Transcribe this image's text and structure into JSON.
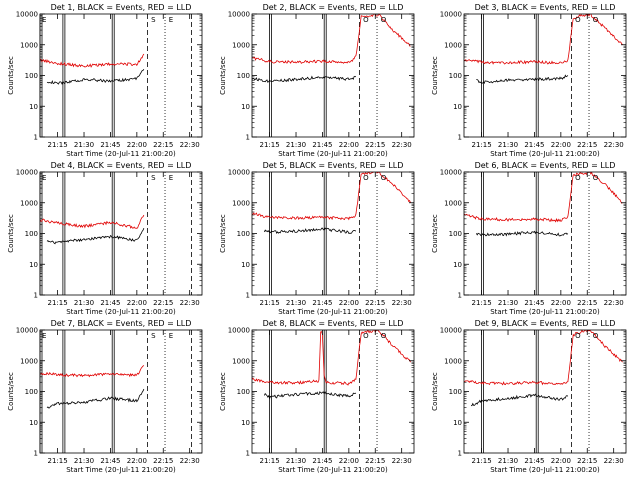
{
  "colors": {
    "events": "#000000",
    "lld": "#e00000",
    "axes": "#000000"
  },
  "chart_data": [
    {
      "type": "line",
      "title": "Det 1, BLACK = Events, RED = LLD",
      "xlabel": "Start Time (20-Jul-11 21:00:20)",
      "ylabel": "Counts/sec",
      "xlim": [
        "21:05",
        "22:37"
      ],
      "ylim": [
        1,
        10000
      ],
      "yscale": "log",
      "grid": false,
      "x_ticks": [
        "21:15",
        "21:30",
        "21:45",
        "22:00",
        "22:15",
        "22:30"
      ],
      "y_ticks": [
        "1",
        "10",
        "100",
        "1000",
        "10000"
      ],
      "annotations": [
        {
          "text": "E",
          "x": "21:05"
        },
        {
          "text": "S",
          "x": "22:07"
        },
        {
          "text": "E",
          "x": "22:17"
        }
      ],
      "solid_vlines": [
        "21:05",
        "21:18",
        "21:46"
      ],
      "dashed_vlines": [
        "22:06",
        "22:31"
      ],
      "dotted_vlines": [
        "22:16"
      ],
      "series": [
        {
          "name": "Events",
          "x": [
            "21:09",
            "21:15",
            "21:30",
            "21:45",
            "22:00",
            "22:04"
          ],
          "values": [
            65,
            55,
            75,
            65,
            80,
            160
          ]
        },
        {
          "name": "LLD",
          "x": [
            "21:05",
            "21:15",
            "21:30",
            "21:45",
            "22:00",
            "22:04"
          ],
          "values": [
            320,
            250,
            200,
            240,
            230,
            500
          ]
        }
      ]
    },
    {
      "type": "line",
      "title": "Det 2, BLACK = Events, RED = LLD",
      "xlabel": "Start Time (20-Jul-11 21:00:20)",
      "ylabel": "Counts/sec",
      "xlim": [
        "21:05",
        "22:37"
      ],
      "ylim": [
        1,
        10000
      ],
      "yscale": "log",
      "grid": false,
      "x_ticks": [
        "21:15",
        "21:30",
        "21:45",
        "22:00",
        "22:15",
        "22:30"
      ],
      "y_ticks": [
        "1",
        "10",
        "100",
        "1000",
        "10000"
      ],
      "annotations": [
        {
          "text": "O",
          "x": "22:07"
        },
        {
          "text": "O",
          "x": "22:17"
        }
      ],
      "solid_vlines": [
        "21:15",
        "21:46"
      ],
      "dashed_vlines": [
        "22:06"
      ],
      "dotted_vlines": [
        "22:16"
      ],
      "series": [
        {
          "name": "Events",
          "x": [
            "21:05",
            "21:15",
            "21:30",
            "21:45",
            "22:00",
            "22:04"
          ],
          "values": [
            80,
            65,
            75,
            90,
            75,
            90
          ]
        },
        {
          "name": "LLD",
          "x": [
            "21:05",
            "21:15",
            "21:30",
            "21:45",
            "22:00",
            "22:04",
            "22:07",
            "22:12",
            "22:17",
            "22:25",
            "22:35"
          ],
          "values": [
            380,
            280,
            270,
            290,
            260,
            400,
            8000,
            9000,
            9500,
            3000,
            900
          ]
        }
      ]
    },
    {
      "type": "line",
      "title": "Det 3, BLACK = Events, RED = LLD",
      "xlabel": "Start Time (20-Jul-11 21:00:20)",
      "ylabel": "Counts/sec",
      "xlim": [
        "21:05",
        "22:37"
      ],
      "ylim": [
        1,
        10000
      ],
      "yscale": "log",
      "grid": false,
      "x_ticks": [
        "21:15",
        "21:30",
        "21:45",
        "22:00",
        "22:15",
        "22:30"
      ],
      "y_ticks": [
        "1",
        "10",
        "100",
        "1000",
        "10000"
      ],
      "annotations": [
        {
          "text": "O",
          "x": "22:07"
        },
        {
          "text": "O",
          "x": "22:17"
        }
      ],
      "solid_vlines": [
        "21:15",
        "21:46"
      ],
      "dashed_vlines": [
        "22:06"
      ],
      "dotted_vlines": [
        "22:16"
      ],
      "series": [
        {
          "name": "Events",
          "x": [
            "21:12",
            "21:15",
            "21:30",
            "21:45",
            "22:00",
            "22:04"
          ],
          "values": [
            70,
            60,
            70,
            75,
            80,
            100
          ]
        },
        {
          "name": "LLD",
          "x": [
            "21:05",
            "21:15",
            "21:30",
            "21:45",
            "22:00",
            "22:04",
            "22:07",
            "22:12",
            "22:17",
            "22:25",
            "22:35"
          ],
          "values": [
            320,
            270,
            260,
            280,
            250,
            300,
            7000,
            9000,
            9500,
            3500,
            1000
          ]
        }
      ]
    },
    {
      "type": "line",
      "title": "Det 4, BLACK = Events, RED = LLD",
      "xlabel": "Start Time (20-Jul-11 21:00:20)",
      "ylabel": "Counts/sec",
      "xlim": [
        "21:05",
        "22:37"
      ],
      "ylim": [
        1,
        10000
      ],
      "yscale": "log",
      "grid": false,
      "x_ticks": [
        "21:15",
        "21:30",
        "21:45",
        "22:00",
        "22:15",
        "22:30"
      ],
      "y_ticks": [
        "1",
        "10",
        "100",
        "1000",
        "10000"
      ],
      "annotations": [
        {
          "text": "E",
          "x": "21:05"
        },
        {
          "text": "S",
          "x": "22:07"
        },
        {
          "text": "E",
          "x": "22:17"
        }
      ],
      "solid_vlines": [
        "21:05",
        "21:18",
        "21:46"
      ],
      "dashed_vlines": [
        "22:06",
        "22:31"
      ],
      "dotted_vlines": [
        "22:16"
      ],
      "series": [
        {
          "name": "Events",
          "x": [
            "21:09",
            "21:15",
            "21:30",
            "21:45",
            "22:00",
            "22:04"
          ],
          "values": [
            55,
            50,
            65,
            80,
            60,
            150
          ]
        },
        {
          "name": "LLD",
          "x": [
            "21:05",
            "21:15",
            "21:30",
            "21:45",
            "22:00",
            "22:04"
          ],
          "values": [
            280,
            220,
            170,
            230,
            150,
            400
          ]
        }
      ]
    },
    {
      "type": "line",
      "title": "Det 5, BLACK = Events, RED = LLD",
      "xlabel": "Start Time (20-Jul-11 21:00:20)",
      "ylabel": "Counts/sec",
      "xlim": [
        "21:05",
        "22:37"
      ],
      "ylim": [
        1,
        10000
      ],
      "yscale": "log",
      "grid": false,
      "x_ticks": [
        "21:15",
        "21:30",
        "21:45",
        "22:00",
        "22:15",
        "22:30"
      ],
      "y_ticks": [
        "1",
        "10",
        "100",
        "1000",
        "10000"
      ],
      "annotations": [
        {
          "text": "O",
          "x": "22:07"
        },
        {
          "text": "O",
          "x": "22:17"
        }
      ],
      "solid_vlines": [
        "21:15",
        "21:46"
      ],
      "dashed_vlines": [
        "22:06"
      ],
      "dotted_vlines": [
        "22:16"
      ],
      "series": [
        {
          "name": "Events",
          "x": [
            "21:12",
            "21:15",
            "21:30",
            "21:45",
            "22:00",
            "22:04"
          ],
          "values": [
            120,
            110,
            120,
            140,
            110,
            120
          ]
        },
        {
          "name": "LLD",
          "x": [
            "21:05",
            "21:15",
            "21:30",
            "21:45",
            "22:00",
            "22:04",
            "22:07",
            "22:12",
            "22:17",
            "22:25",
            "22:35"
          ],
          "values": [
            450,
            330,
            320,
            340,
            300,
            400,
            9000,
            9500,
            9800,
            4000,
            1000
          ]
        }
      ]
    },
    {
      "type": "line",
      "title": "Det 6, BLACK = Events, RED = LLD",
      "xlabel": "Start Time (20-Jul-11 21:00:20)",
      "ylabel": "Counts/sec",
      "xlim": [
        "21:05",
        "22:37"
      ],
      "ylim": [
        1,
        10000
      ],
      "yscale": "log",
      "grid": false,
      "x_ticks": [
        "21:15",
        "21:30",
        "21:45",
        "22:00",
        "22:15",
        "22:30"
      ],
      "y_ticks": [
        "1",
        "10",
        "100",
        "1000",
        "10000"
      ],
      "annotations": [
        {
          "text": "O",
          "x": "22:07"
        },
        {
          "text": "O",
          "x": "22:17"
        }
      ],
      "solid_vlines": [
        "21:15",
        "21:46"
      ],
      "dashed_vlines": [
        "22:06"
      ],
      "dotted_vlines": [
        "22:16"
      ],
      "series": [
        {
          "name": "Events",
          "x": [
            "21:12",
            "21:15",
            "21:30",
            "21:45",
            "22:00",
            "22:04"
          ],
          "values": [
            100,
            90,
            95,
            110,
            90,
            100
          ]
        },
        {
          "name": "LLD",
          "x": [
            "21:05",
            "21:15",
            "21:30",
            "21:45",
            "22:00",
            "22:04",
            "22:07",
            "22:12",
            "22:17",
            "22:25",
            "22:35"
          ],
          "values": [
            400,
            300,
            280,
            300,
            260,
            350,
            8000,
            9000,
            9500,
            4000,
            1000
          ]
        }
      ]
    },
    {
      "type": "line",
      "title": "Det 7, BLACK = Events, RED = LLD",
      "xlabel": "Start Time (20-Jul-11 21:00:20)",
      "ylabel": "Counts/sec",
      "xlim": [
        "21:05",
        "22:37"
      ],
      "ylim": [
        1,
        10000
      ],
      "yscale": "log",
      "grid": false,
      "x_ticks": [
        "21:15",
        "21:30",
        "21:45",
        "22:00",
        "22:15",
        "22:30"
      ],
      "y_ticks": [
        "1",
        "10",
        "100",
        "1000",
        "10000"
      ],
      "annotations": [
        {
          "text": "E",
          "x": "21:05"
        },
        {
          "text": "S",
          "x": "22:07"
        },
        {
          "text": "E",
          "x": "22:17"
        }
      ],
      "solid_vlines": [
        "21:05",
        "21:18",
        "21:46"
      ],
      "dashed_vlines": [
        "22:06",
        "22:31"
      ],
      "dotted_vlines": [
        "22:16"
      ],
      "series": [
        {
          "name": "Events",
          "x": [
            "21:09",
            "21:15",
            "21:30",
            "21:45",
            "22:00",
            "22:04"
          ],
          "values": [
            30,
            40,
            45,
            60,
            50,
            120
          ]
        },
        {
          "name": "LLD",
          "x": [
            "21:05",
            "21:15",
            "21:30",
            "21:45",
            "22:00",
            "22:04"
          ],
          "values": [
            400,
            350,
            330,
            380,
            330,
            700
          ]
        }
      ]
    },
    {
      "type": "line",
      "title": "Det 8, BLACK = Events, RED = LLD",
      "xlabel": "Start Time (20-Jul-11 21:00:20)",
      "ylabel": "Counts/sec",
      "xlim": [
        "21:05",
        "22:37"
      ],
      "ylim": [
        1,
        10000
      ],
      "yscale": "log",
      "grid": false,
      "x_ticks": [
        "21:15",
        "21:30",
        "21:45",
        "22:00",
        "22:15",
        "22:30"
      ],
      "y_ticks": [
        "1",
        "10",
        "100",
        "1000",
        "10000"
      ],
      "annotations": [
        {
          "text": "O",
          "x": "22:07"
        },
        {
          "text": "O",
          "x": "22:17"
        }
      ],
      "solid_vlines": [
        "21:15",
        "21:46"
      ],
      "dashed_vlines": [
        "22:06"
      ],
      "dotted_vlines": [
        "22:16"
      ],
      "series": [
        {
          "name": "Events",
          "x": [
            "21:12",
            "21:15",
            "21:30",
            "21:45",
            "22:00",
            "22:04"
          ],
          "values": [
            80,
            65,
            80,
            90,
            70,
            90
          ]
        },
        {
          "name": "LLD",
          "x": [
            "21:05",
            "21:15",
            "21:30",
            "21:43",
            "21:44",
            "21:45",
            "21:46",
            "21:47",
            "22:00",
            "22:04",
            "22:07",
            "22:12",
            "22:17",
            "22:25",
            "22:35"
          ],
          "values": [
            250,
            200,
            190,
            220,
            8000,
            8000,
            300,
            200,
            180,
            250,
            8000,
            9000,
            9500,
            3000,
            900
          ]
        }
      ]
    },
    {
      "type": "line",
      "title": "Det 9, BLACK = Events, RED = LLD",
      "xlabel": "Start Time (20-Jul-11 21:00:20)",
      "ylabel": "Counts/sec",
      "xlim": [
        "21:05",
        "22:37"
      ],
      "ylim": [
        1,
        10000
      ],
      "yscale": "log",
      "grid": false,
      "x_ticks": [
        "21:15",
        "21:30",
        "21:45",
        "22:00",
        "22:15",
        "22:30"
      ],
      "y_ticks": [
        "1",
        "10",
        "100",
        "1000",
        "10000"
      ],
      "annotations": [
        {
          "text": "O",
          "x": "22:07"
        },
        {
          "text": "O",
          "x": "22:17"
        }
      ],
      "solid_vlines": [
        "21:15",
        "21:46"
      ],
      "dashed_vlines": [
        "22:06"
      ],
      "dotted_vlines": [
        "22:16"
      ],
      "series": [
        {
          "name": "Events",
          "x": [
            "21:09",
            "21:15",
            "21:30",
            "21:45",
            "22:00",
            "22:04"
          ],
          "values": [
            35,
            50,
            60,
            75,
            55,
            70
          ]
        },
        {
          "name": "LLD",
          "x": [
            "21:05",
            "21:15",
            "21:30",
            "21:45",
            "22:00",
            "22:04",
            "22:07",
            "22:12",
            "22:17",
            "22:25",
            "22:35"
          ],
          "values": [
            220,
            190,
            180,
            200,
            170,
            200,
            7000,
            9000,
            9500,
            3000,
            900
          ]
        }
      ]
    }
  ]
}
